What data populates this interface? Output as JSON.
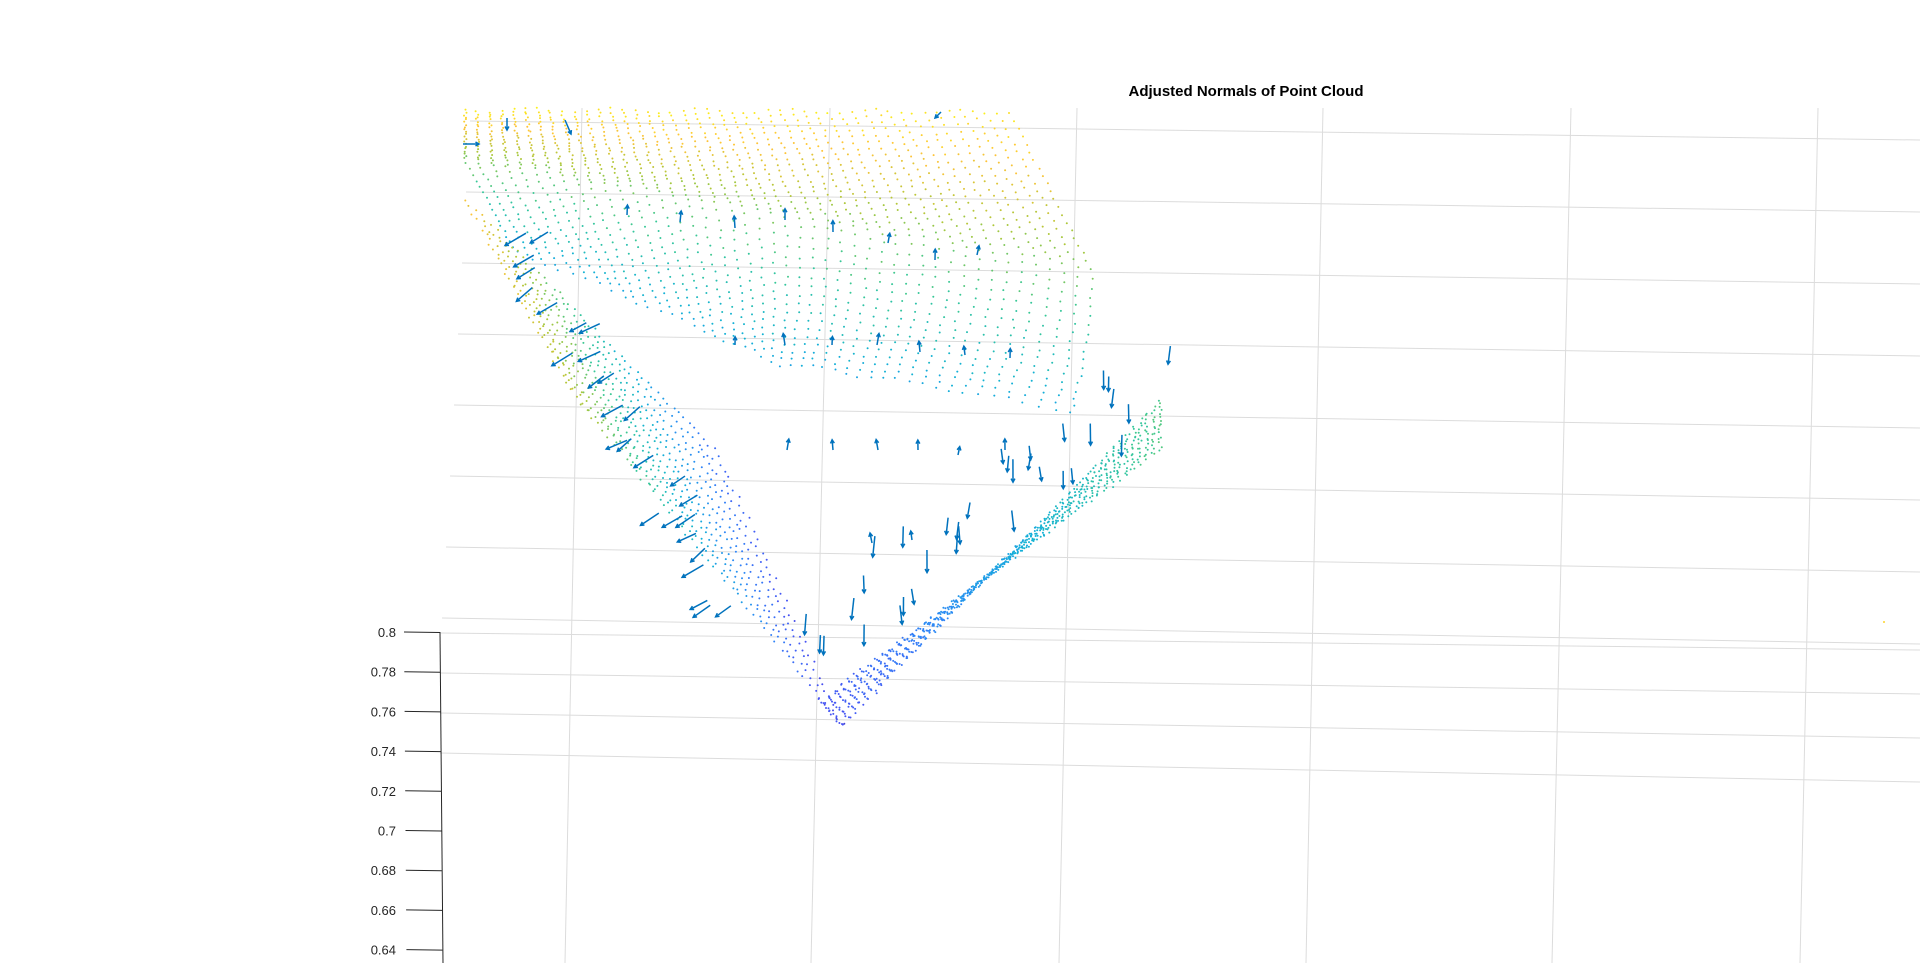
{
  "chart_data": {
    "type": "scatter",
    "subtype": "3d-point-cloud-with-normal-vectors",
    "title": "Adjusted Normals of Point Cloud",
    "xlabel": "",
    "ylabel": "",
    "zlabel": "",
    "z_axis": {
      "ticks": [
        0.8,
        0.78,
        0.76,
        0.74,
        0.72,
        0.7,
        0.68,
        0.66,
        0.64
      ],
      "tick_labels": [
        "0.8",
        "0.78",
        "0.76",
        "0.74",
        "0.72",
        "0.7",
        "0.68",
        "0.66",
        "0.64"
      ],
      "range": [
        0.64,
        0.8
      ]
    },
    "grid": true,
    "colormap": "parula",
    "point_color": "by height (yellow high, blue low)",
    "quiver_color": "#0072BD",
    "grid_color": "#dcdcdc",
    "axis_color": "#262626"
  }
}
